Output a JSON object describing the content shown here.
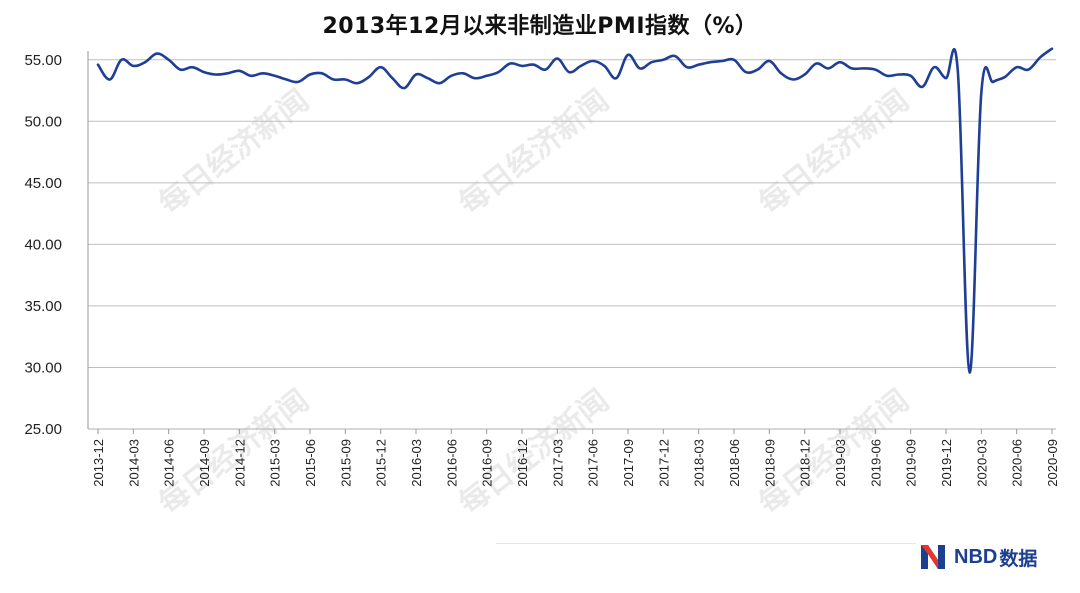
{
  "chart_data": {
    "type": "line",
    "title": "2013年12月以来非制造业PMI指数（%）",
    "xlabel": "",
    "ylabel": "",
    "ylim": [
      25,
      57.5
    ],
    "yticks": [
      "25.00",
      "30.00",
      "35.00",
      "40.00",
      "45.00",
      "50.00",
      "55.00"
    ],
    "grid": true,
    "legend": "none",
    "x_tick_labels": [
      "2013-12",
      "2014-03",
      "2014-06",
      "2014-09",
      "2014-12",
      "2015-03",
      "2015-06",
      "2015-09",
      "2015-12",
      "2016-03",
      "2016-06",
      "2016-09",
      "2016-12",
      "2017-03",
      "2017-06",
      "2017-09",
      "2017-12",
      "2018-03",
      "2018-06",
      "2018-09",
      "2018-12",
      "2019-03",
      "2019-06",
      "2019-09",
      "2019-12",
      "2020-03",
      "2020-06",
      "2020-09"
    ],
    "x_start": "2013-12",
    "series": [
      {
        "color": "#1f3f94",
        "values": [
          54.6,
          53.4,
          55.0,
          54.5,
          54.8,
          55.5,
          55.0,
          54.2,
          54.4,
          54.0,
          53.8,
          53.9,
          54.1,
          53.7,
          53.9,
          53.7,
          53.4,
          53.2,
          53.8,
          53.9,
          53.4,
          53.4,
          53.1,
          53.6,
          54.4,
          53.5,
          52.7,
          53.8,
          53.5,
          53.1,
          53.7,
          53.9,
          53.5,
          53.7,
          54.0,
          54.7,
          54.5,
          54.6,
          54.2,
          55.1,
          54.0,
          54.5,
          54.9,
          54.5,
          53.5,
          55.4,
          54.3,
          54.8,
          55.0,
          55.3,
          54.4,
          54.6,
          54.8,
          54.9,
          55.0,
          54.0,
          54.2,
          54.9,
          53.9,
          53.4,
          53.8,
          54.7,
          54.3,
          54.8,
          54.3,
          54.3,
          54.2,
          53.7,
          53.8,
          53.7,
          52.8,
          54.4,
          53.5,
          54.1,
          29.6,
          52.3,
          53.2,
          53.6,
          54.4,
          54.2,
          55.2,
          55.9
        ]
      }
    ]
  },
  "watermark": "每日经济新闻",
  "brand": {
    "name": "NBD",
    "suffix": "数据"
  },
  "colors": {
    "line": "#1f3f94",
    "grid": "#bfbfbf",
    "accent_red": "#e8342a",
    "accent_blue": "#1d3f8f"
  }
}
